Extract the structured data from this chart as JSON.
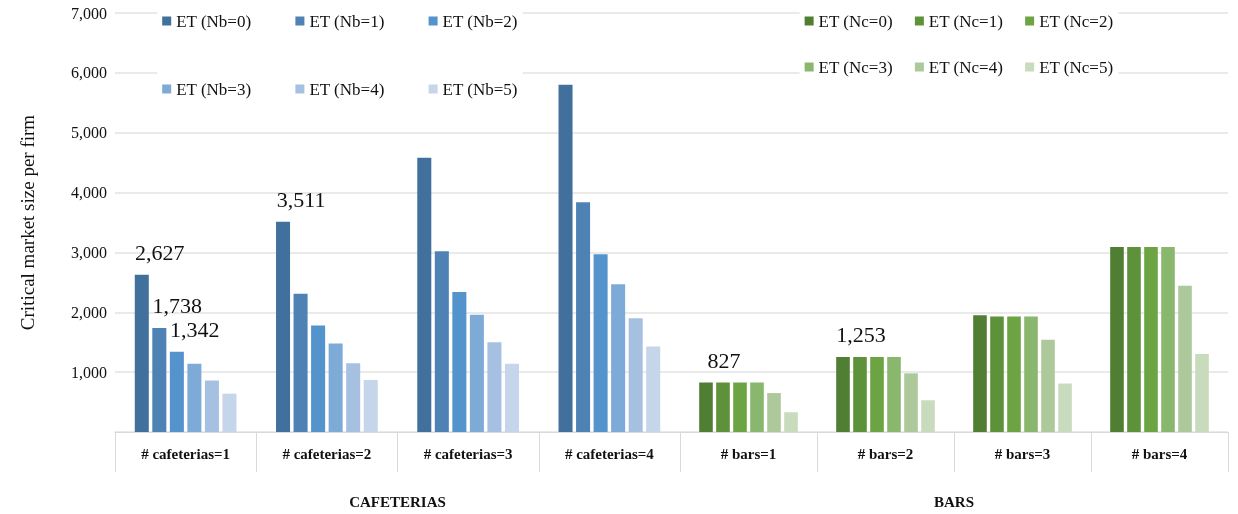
{
  "chart_data": [
    {
      "type": "bar",
      "xlabel": "CAFETERIAS",
      "ylabel": "Critical market size per firm",
      "categories": [
        "# cafeterias=1",
        "# cafeterias=2",
        "# cafeterias=3",
        "# cafeterias=4"
      ],
      "series": [
        {
          "name": "ET (Nb=0)",
          "color": "#41709c",
          "values": [
            2627,
            3511,
            4580,
            5800
          ],
          "value_labels": [
            "2,627",
            "3,511",
            null,
            null
          ]
        },
        {
          "name": "ET (Nb=1)",
          "color": "#4e82b4",
          "values": [
            1738,
            2310,
            3020,
            3840
          ],
          "value_labels": [
            "1,738",
            null,
            null,
            null
          ]
        },
        {
          "name": "ET (Nb=2)",
          "color": "#5593cc",
          "values": [
            1342,
            1780,
            2340,
            2970
          ],
          "value_labels": [
            "1,342",
            null,
            null,
            null
          ]
        },
        {
          "name": "ET (Nb=3)",
          "color": "#7eaad8",
          "values": [
            1140,
            1480,
            1960,
            2470
          ]
        },
        {
          "name": "ET (Nb=4)",
          "color": "#a6c0e2",
          "values": [
            860,
            1150,
            1500,
            1900
          ]
        },
        {
          "name": "ET (Nb=5)",
          "color": "#c5d5ea",
          "values": [
            640,
            870,
            1140,
            1430
          ]
        }
      ],
      "ylim": [
        0,
        7000
      ],
      "yticks": [
        {
          "value": 0,
          "label": null
        },
        "1,000",
        "2,000",
        "3,000",
        "4,000",
        "5,000",
        "6,000",
        "7,000"
      ],
      "grid": "y",
      "legend": "top"
    },
    {
      "type": "bar",
      "xlabel": "BARS",
      "categories": [
        "# bars=1",
        "# bars=2",
        "# bars=3",
        "# bars=4"
      ],
      "series": [
        {
          "name": "ET (Nc=0)",
          "color": "#507e32",
          "values": [
            827,
            1253,
            1950,
            3090
          ],
          "value_labels": [
            "827",
            "1,253",
            null,
            null
          ]
        },
        {
          "name": "ET (Nc=1)",
          "color": "#5e923a",
          "values": [
            827,
            1253,
            1930,
            3090
          ]
        },
        {
          "name": "ET (Nc=2)",
          "color": "#6ca443",
          "values": [
            827,
            1253,
            1930,
            3090
          ]
        },
        {
          "name": "ET (Nc=3)",
          "color": "#8ab76e",
          "values": [
            827,
            1253,
            1930,
            3090
          ]
        },
        {
          "name": "ET (Nc=4)",
          "color": "#adc99b",
          "values": [
            650,
            980,
            1540,
            2445
          ]
        },
        {
          "name": "ET (Nc=5)",
          "color": "#c9dbbd",
          "values": [
            330,
            530,
            810,
            1305
          ]
        }
      ],
      "ylim": [
        0,
        7000
      ],
      "grid": "y",
      "legend": "top",
      "tick_labels": "x"
    }
  ]
}
